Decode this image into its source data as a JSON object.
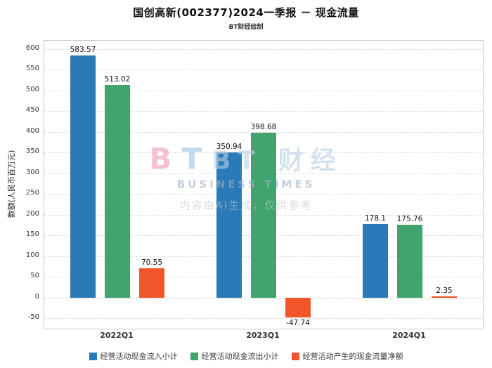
{
  "title": "国创高新(002377)2024一季报 － 现金流量",
  "subtitle": "BT财经绘制",
  "watermark": {
    "logo_b": "B",
    "logo_t": "T",
    "brand": "BT 财经",
    "sub": "BUSINESS TIMES",
    "disclaimer": "内容由AI生成，仅供参考"
  },
  "chart_data": {
    "type": "bar",
    "title": "国创高新(002377)2024一季报 － 现金流量",
    "subtitle": "BT财经绘制",
    "categories": [
      "2022Q1",
      "2023Q1",
      "2024Q1"
    ],
    "series": [
      {
        "name": "经营活动现金流入小计",
        "color": "#2a7ab8",
        "values": [
          583.57,
          350.94,
          178.1
        ]
      },
      {
        "name": "经营活动现金流出小计",
        "color": "#41a46f",
        "values": [
          513.02,
          398.68,
          175.76
        ]
      },
      {
        "name": "经营活动产生的现金流量净额",
        "color": "#f0562a",
        "values": [
          70.55,
          -47.74,
          2.35
        ]
      }
    ],
    "xlabel": "",
    "ylabel": "数额(人民币百万元)",
    "ylim": [
      -75,
      620
    ],
    "yticks": [
      -50,
      0,
      50,
      100,
      150,
      200,
      250,
      300,
      350,
      400,
      450,
      500,
      550,
      600
    ],
    "grid": true,
    "legend_position": "bottom"
  }
}
